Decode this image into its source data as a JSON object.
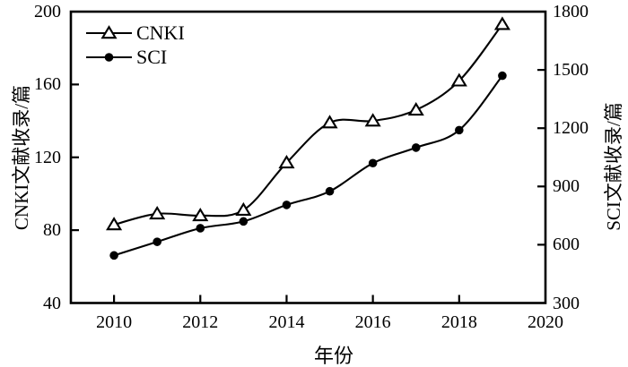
{
  "chart_data": {
    "type": "line",
    "x": [
      2010,
      2011,
      2012,
      2013,
      2014,
      2015,
      2016,
      2017,
      2018,
      2019
    ],
    "series": [
      {
        "name": "CNKI",
        "axis": "left",
        "marker": "open-triangle",
        "color": "#000000",
        "values": [
          83,
          89,
          88,
          91,
          117,
          139,
          140,
          146,
          162,
          193
        ]
      },
      {
        "name": "SCI",
        "axis": "right",
        "marker": "filled-circle",
        "color": "#000000",
        "values": [
          545,
          615,
          685,
          720,
          805,
          875,
          1020,
          1100,
          1190,
          1470
        ]
      }
    ],
    "xlabel": "年份",
    "x_ticks": [
      2010,
      2012,
      2014,
      2016,
      2018,
      2020
    ],
    "x_range": [
      2009,
      2020
    ],
    "left_axis": {
      "label": "CNKI文献收录/篇",
      "range": [
        40,
        200
      ],
      "ticks": [
        40,
        80,
        120,
        160,
        200
      ]
    },
    "right_axis": {
      "label": "SCI文献收录/篇",
      "range": [
        300,
        1800
      ],
      "ticks": [
        300,
        600,
        900,
        1200,
        1500,
        1800
      ]
    },
    "legend": {
      "position": "top-left",
      "entries": [
        "CNKI",
        "SCI"
      ]
    },
    "grid": false,
    "ink": "#000000",
    "background": "#ffffff"
  }
}
